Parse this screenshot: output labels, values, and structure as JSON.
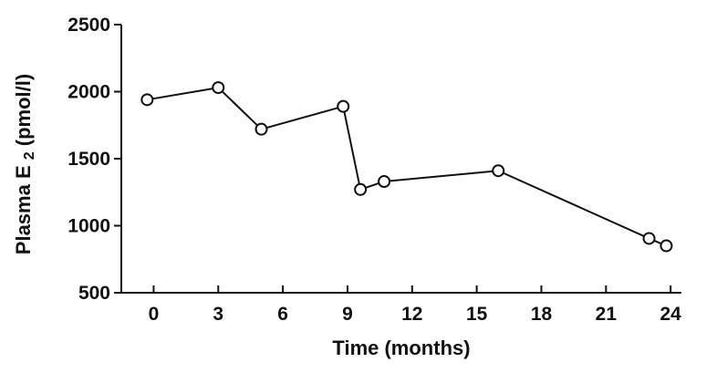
{
  "chart_data": {
    "type": "line",
    "title": "",
    "xlabel": "Time (months)",
    "ylabel_main": "Plasma E",
    "ylabel_subscript": "2",
    "ylabel_unit": " (pmol/l)",
    "x_ticks": [
      "0",
      "3",
      "6",
      "9",
      "12",
      "15",
      "18",
      "21",
      "24"
    ],
    "y_ticks": [
      "500",
      "1000",
      "1500",
      "2000",
      "2500"
    ],
    "xlim": [
      -1.5,
      24.5
    ],
    "ylim": [
      500,
      2500
    ],
    "grid": false,
    "series": [
      {
        "marker": "open-circle",
        "x": [
          -0.3,
          3,
          5,
          8.8,
          9.6,
          10.7,
          16,
          23,
          23.8
        ],
        "y": [
          1940,
          2030,
          1720,
          1890,
          1270,
          1330,
          1410,
          905,
          850
        ]
      }
    ]
  }
}
